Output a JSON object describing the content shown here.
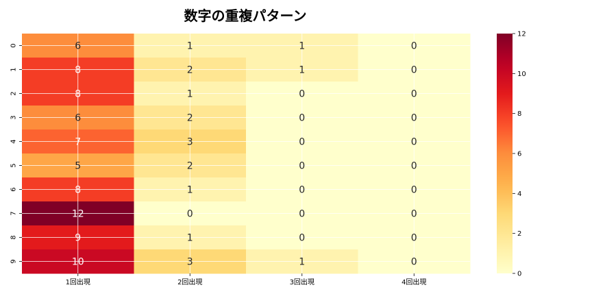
{
  "chart_data": {
    "type": "heatmap",
    "title": "数字の重複パターン",
    "xlabel": "",
    "ylabel": "",
    "x_categories": [
      "1回出現",
      "2回出現",
      "3回出現",
      "4回出現"
    ],
    "y_categories": [
      "0",
      "1",
      "2",
      "3",
      "4",
      "5",
      "6",
      "7",
      "8",
      "9"
    ],
    "values": [
      [
        6,
        1,
        1,
        0
      ],
      [
        8,
        2,
        1,
        0
      ],
      [
        8,
        1,
        0,
        0
      ],
      [
        6,
        2,
        0,
        0
      ],
      [
        7,
        3,
        0,
        0
      ],
      [
        5,
        2,
        0,
        0
      ],
      [
        8,
        1,
        0,
        0
      ],
      [
        12,
        0,
        0,
        0
      ],
      [
        9,
        1,
        0,
        0
      ],
      [
        10,
        3,
        1,
        0
      ]
    ],
    "annotations": true,
    "colormap": "YlOrRd",
    "vmin": 0,
    "vmax": 12,
    "colorbar_ticks": [
      0,
      2,
      4,
      6,
      8,
      10,
      12
    ],
    "grid": true
  }
}
